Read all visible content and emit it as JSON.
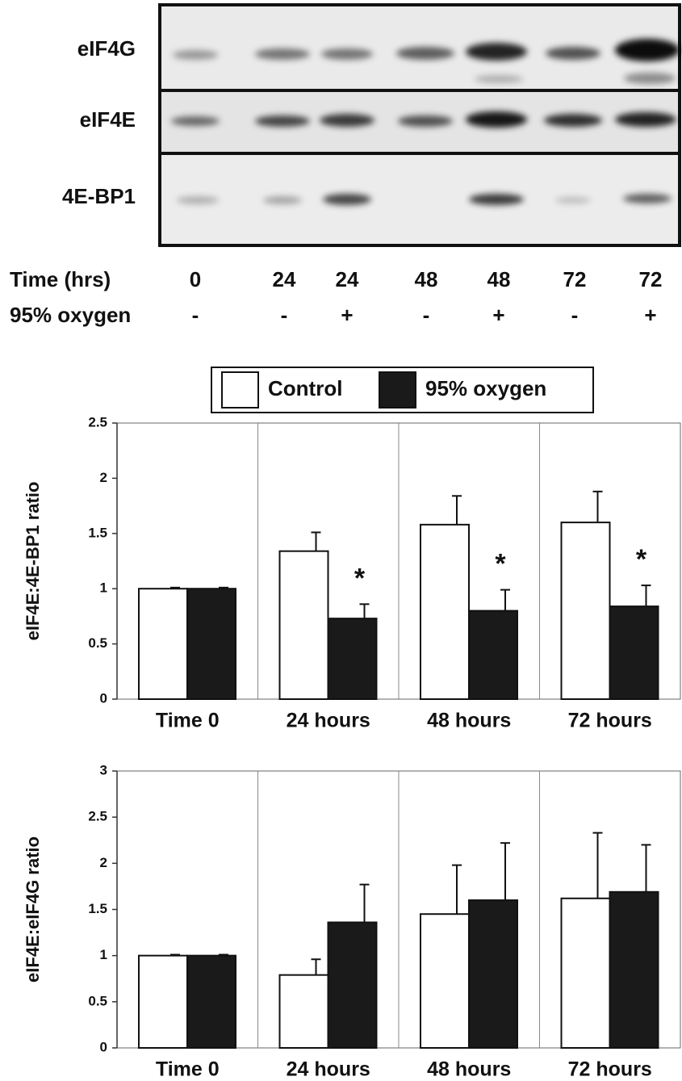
{
  "blot": {
    "rows": [
      "eIF4G",
      "eIF4E",
      "4E-BP1"
    ],
    "time_label": "Time (hrs)",
    "times": [
      0,
      24,
      24,
      48,
      48,
      72,
      72
    ],
    "oxygen_label": "95% oxygen",
    "oxygen": [
      "-",
      "-",
      "+",
      "-",
      "+",
      "-",
      "+"
    ]
  },
  "chart_data": [
    {
      "type": "bar",
      "ylabel": "eIF4E:4E-BP1 ratio",
      "categories": [
        "Time 0",
        "24 hours",
        "48 hours",
        "72 hours"
      ],
      "series": [
        {
          "name": "Control",
          "color": "#ffffff",
          "values": [
            1.0,
            1.34,
            1.58,
            1.6
          ],
          "errors": [
            0.01,
            0.17,
            0.26,
            0.28
          ]
        },
        {
          "name": "95% oxygen",
          "color": "#1a1a1a",
          "values": [
            1.0,
            0.73,
            0.8,
            0.84
          ],
          "errors": [
            0.01,
            0.13,
            0.19,
            0.19
          ]
        }
      ],
      "significance": [
        null,
        "*",
        "*",
        "*"
      ],
      "ylim": [
        0,
        2.5
      ],
      "yticks": [
        0,
        0.5,
        1,
        1.5,
        2,
        2.5
      ]
    },
    {
      "type": "bar",
      "ylabel": "eIF4E:eIF4G ratio",
      "categories": [
        "Time 0",
        "24 hours",
        "48 hours",
        "72 hours"
      ],
      "series": [
        {
          "color": "#ffffff",
          "values": [
            1.0,
            0.79,
            1.45,
            1.62
          ],
          "errors": [
            0.01,
            0.17,
            0.53,
            0.71
          ]
        },
        {
          "color": "#1a1a1a",
          "values": [
            1.0,
            1.36,
            1.6,
            1.69
          ],
          "errors": [
            0.01,
            0.41,
            0.62,
            0.51
          ]
        }
      ],
      "ylim": [
        0,
        3
      ],
      "yticks": [
        0,
        0.5,
        1,
        1.5,
        2,
        2.5,
        3
      ]
    }
  ]
}
